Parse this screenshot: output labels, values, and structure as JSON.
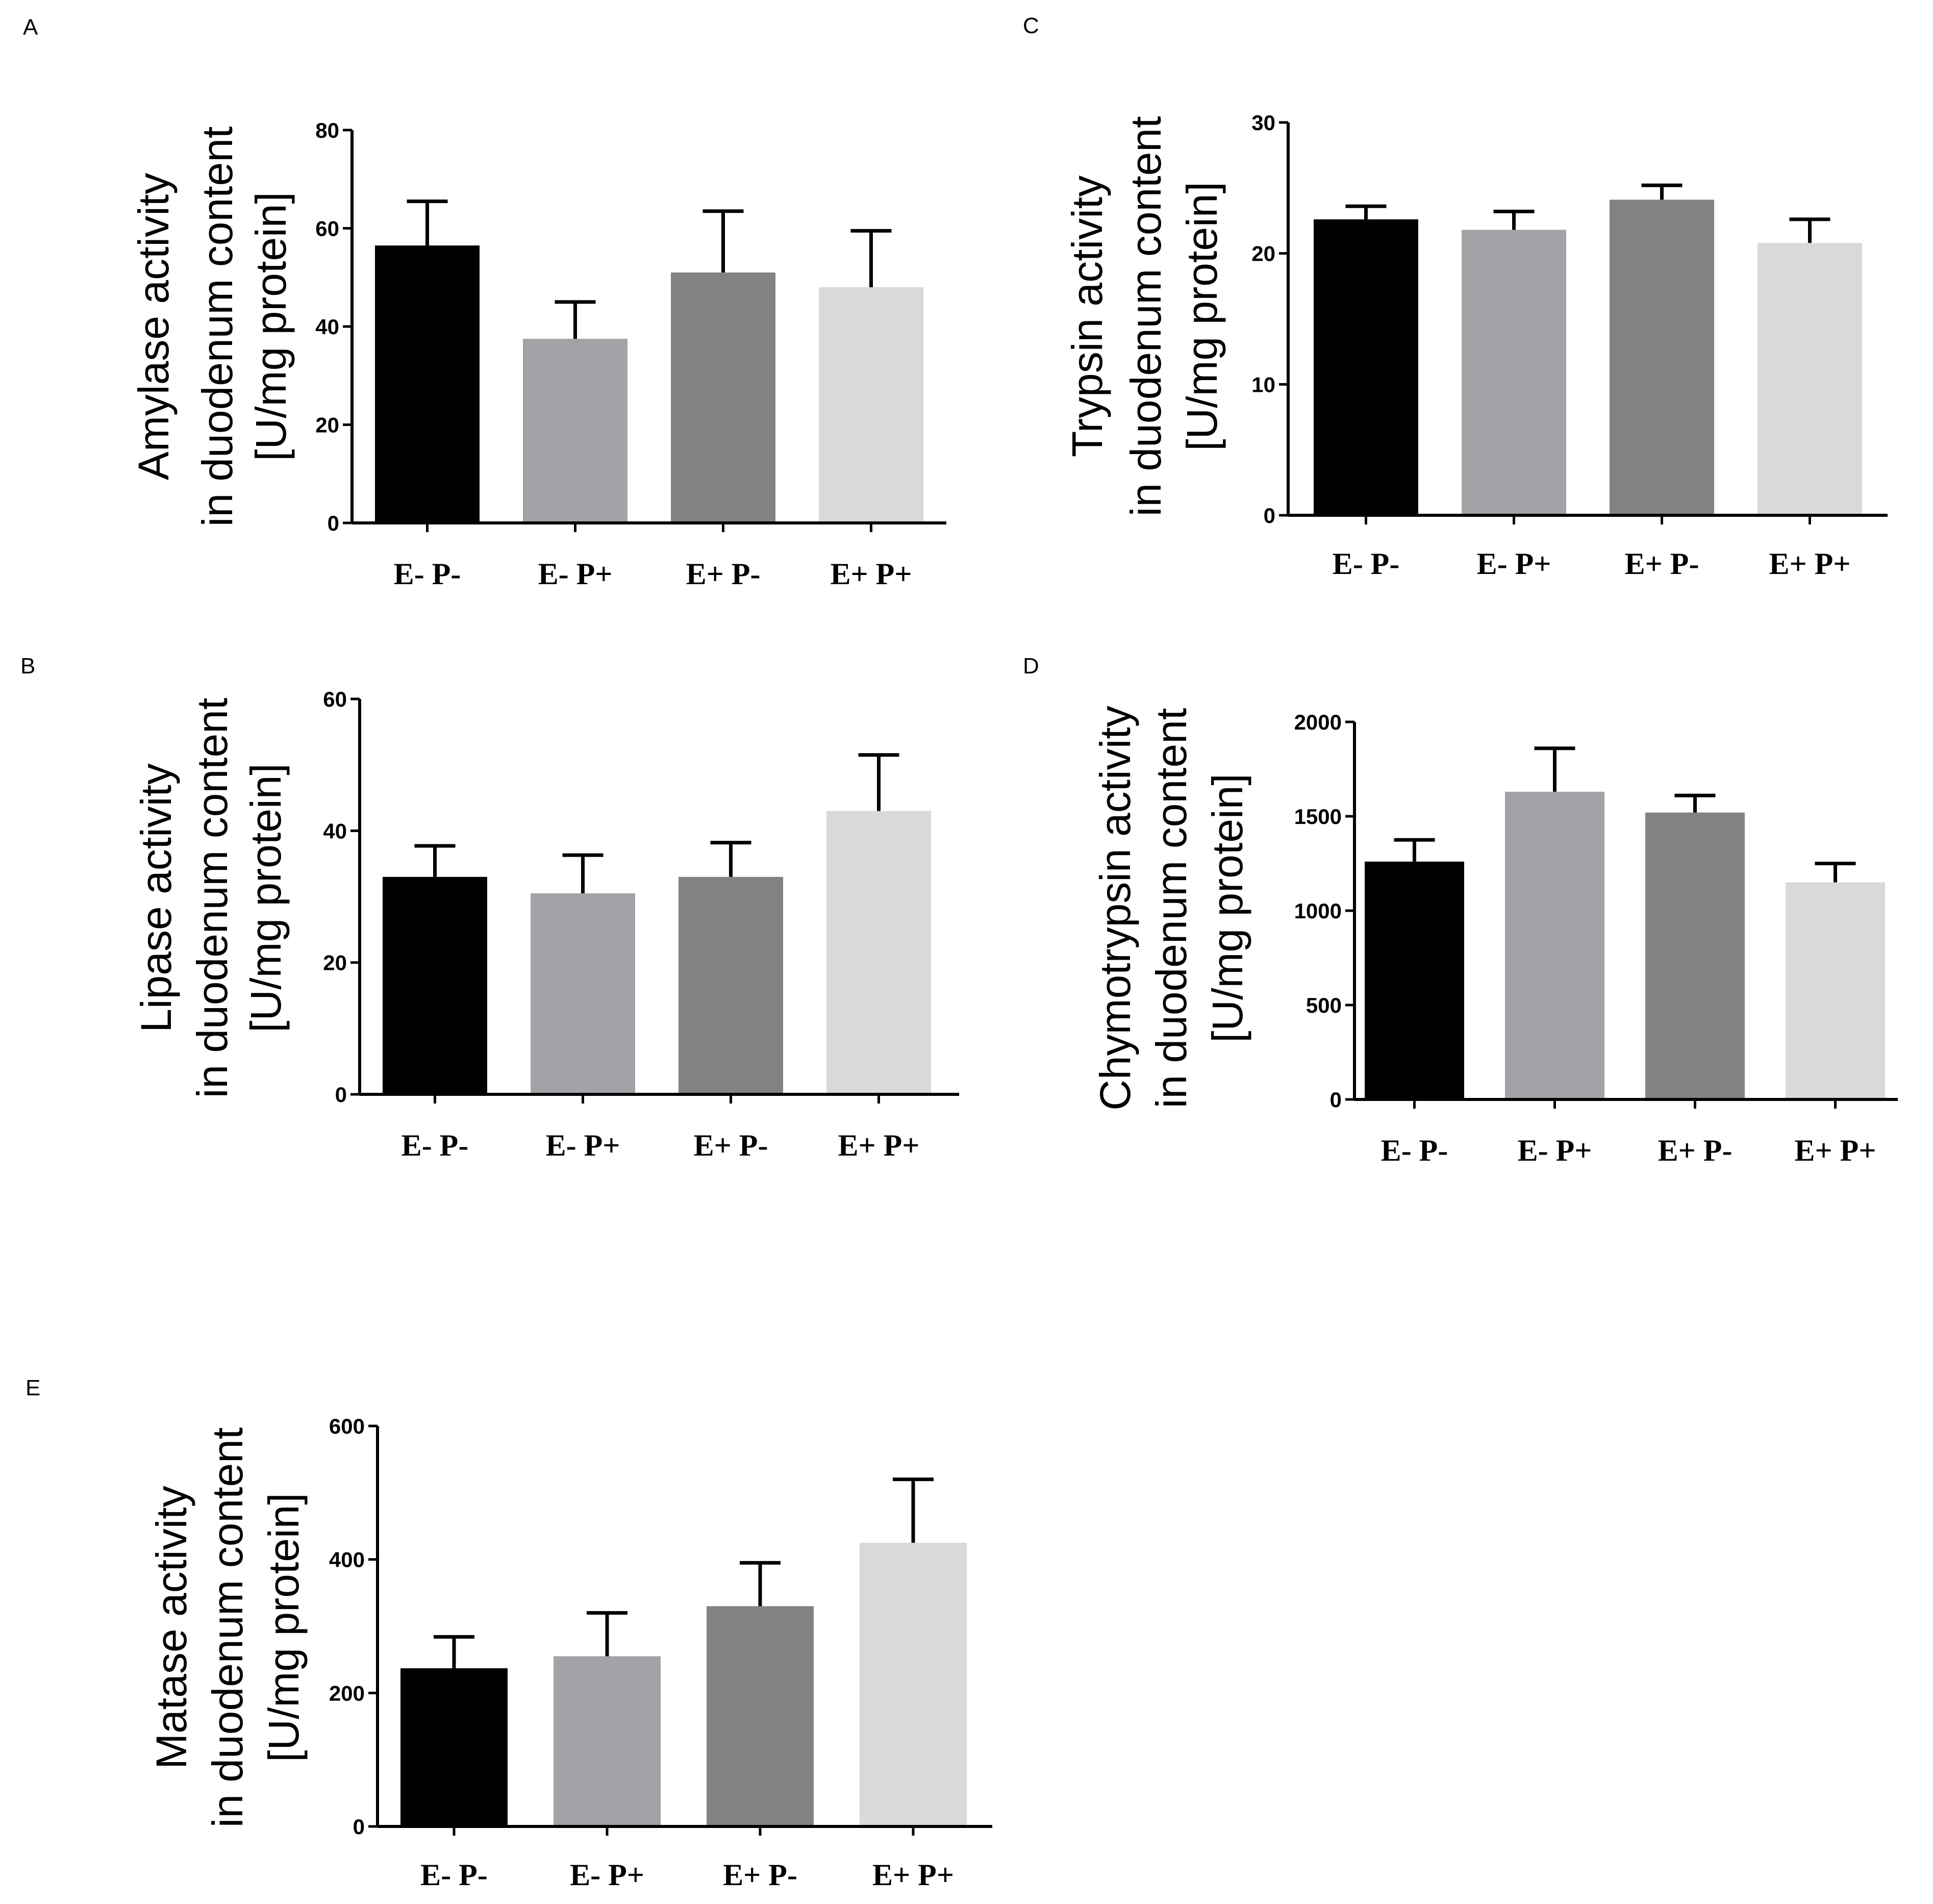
{
  "chart_data": [
    {
      "panel": "A",
      "type": "bar",
      "ylabel": [
        "Amylase activity",
        "in duodenum content",
        "[U/mg protein]"
      ],
      "categories": [
        "E- P-",
        "E- P+",
        "E+ P-",
        "E+ P+"
      ],
      "values": [
        56.5,
        37.5,
        51,
        48
      ],
      "errors": [
        9,
        7.5,
        12.5,
        11.5
      ],
      "yticks": [
        0,
        20,
        40,
        60,
        80
      ],
      "ylim": [
        0,
        80
      ],
      "colors": [
        "#000000",
        "#a3a2a7",
        "#828282",
        "#d9d9d9"
      ]
    },
    {
      "panel": "B",
      "type": "bar",
      "ylabel": [
        "Lipase activity",
        "in duodenum content",
        "[U/mg protein]"
      ],
      "categories": [
        "E- P-",
        "E- P+",
        "E+ P-",
        "E+ P+"
      ],
      "values": [
        33,
        30.5,
        33,
        43
      ],
      "errors": [
        4.7,
        5.8,
        5.2,
        8.5
      ],
      "yticks": [
        0,
        20,
        40,
        60
      ],
      "ylim": [
        0,
        60
      ],
      "colors": [
        "#000000",
        "#a3a2a7",
        "#828282",
        "#d9d9d9"
      ]
    },
    {
      "panel": "C",
      "type": "bar",
      "ylabel": [
        "Trypsin activity",
        "in duodenum content",
        "[U/mg protein]"
      ],
      "categories": [
        "E- P-",
        "E- P+",
        "E+ P-",
        "E+ P+"
      ],
      "values": [
        22.6,
        21.8,
        24.1,
        20.8
      ],
      "errors": [
        1,
        1.4,
        1.1,
        1.8
      ],
      "yticks": [
        0,
        10,
        20,
        30
      ],
      "ylim": [
        0,
        30
      ],
      "colors": [
        "#000000",
        "#a3a2a7",
        "#828282",
        "#d9d9d9"
      ]
    },
    {
      "panel": "D",
      "type": "bar",
      "ylabel": [
        "Chymotrypsin activity",
        "in duodenum content",
        "[U/mg protein]"
      ],
      "categories": [
        "E- P-",
        "E- P+",
        "E+ P-",
        "E+ P+"
      ],
      "values": [
        1260,
        1630,
        1520,
        1150
      ],
      "errors": [
        115,
        230,
        90,
        100
      ],
      "yticks": [
        0,
        500,
        1000,
        1500,
        2000
      ],
      "ylim": [
        0,
        2000
      ],
      "colors": [
        "#000000",
        "#a3a2a7",
        "#828282",
        "#d9d9d9"
      ]
    },
    {
      "panel": "E",
      "type": "bar",
      "ylabel": [
        "Matase activity",
        "in duodenum content",
        "[U/mg protein]"
      ],
      "categories": [
        "E- P-",
        "E- P+",
        "E+ P-",
        "E+ P+"
      ],
      "values": [
        237,
        255,
        330,
        425
      ],
      "errors": [
        47,
        65,
        65,
        95
      ],
      "yticks": [
        0,
        200,
        400,
        600
      ],
      "ylim": [
        0,
        600
      ],
      "colors": [
        "#000000",
        "#a3a2a7",
        "#828282",
        "#d9d9d9"
      ]
    }
  ]
}
